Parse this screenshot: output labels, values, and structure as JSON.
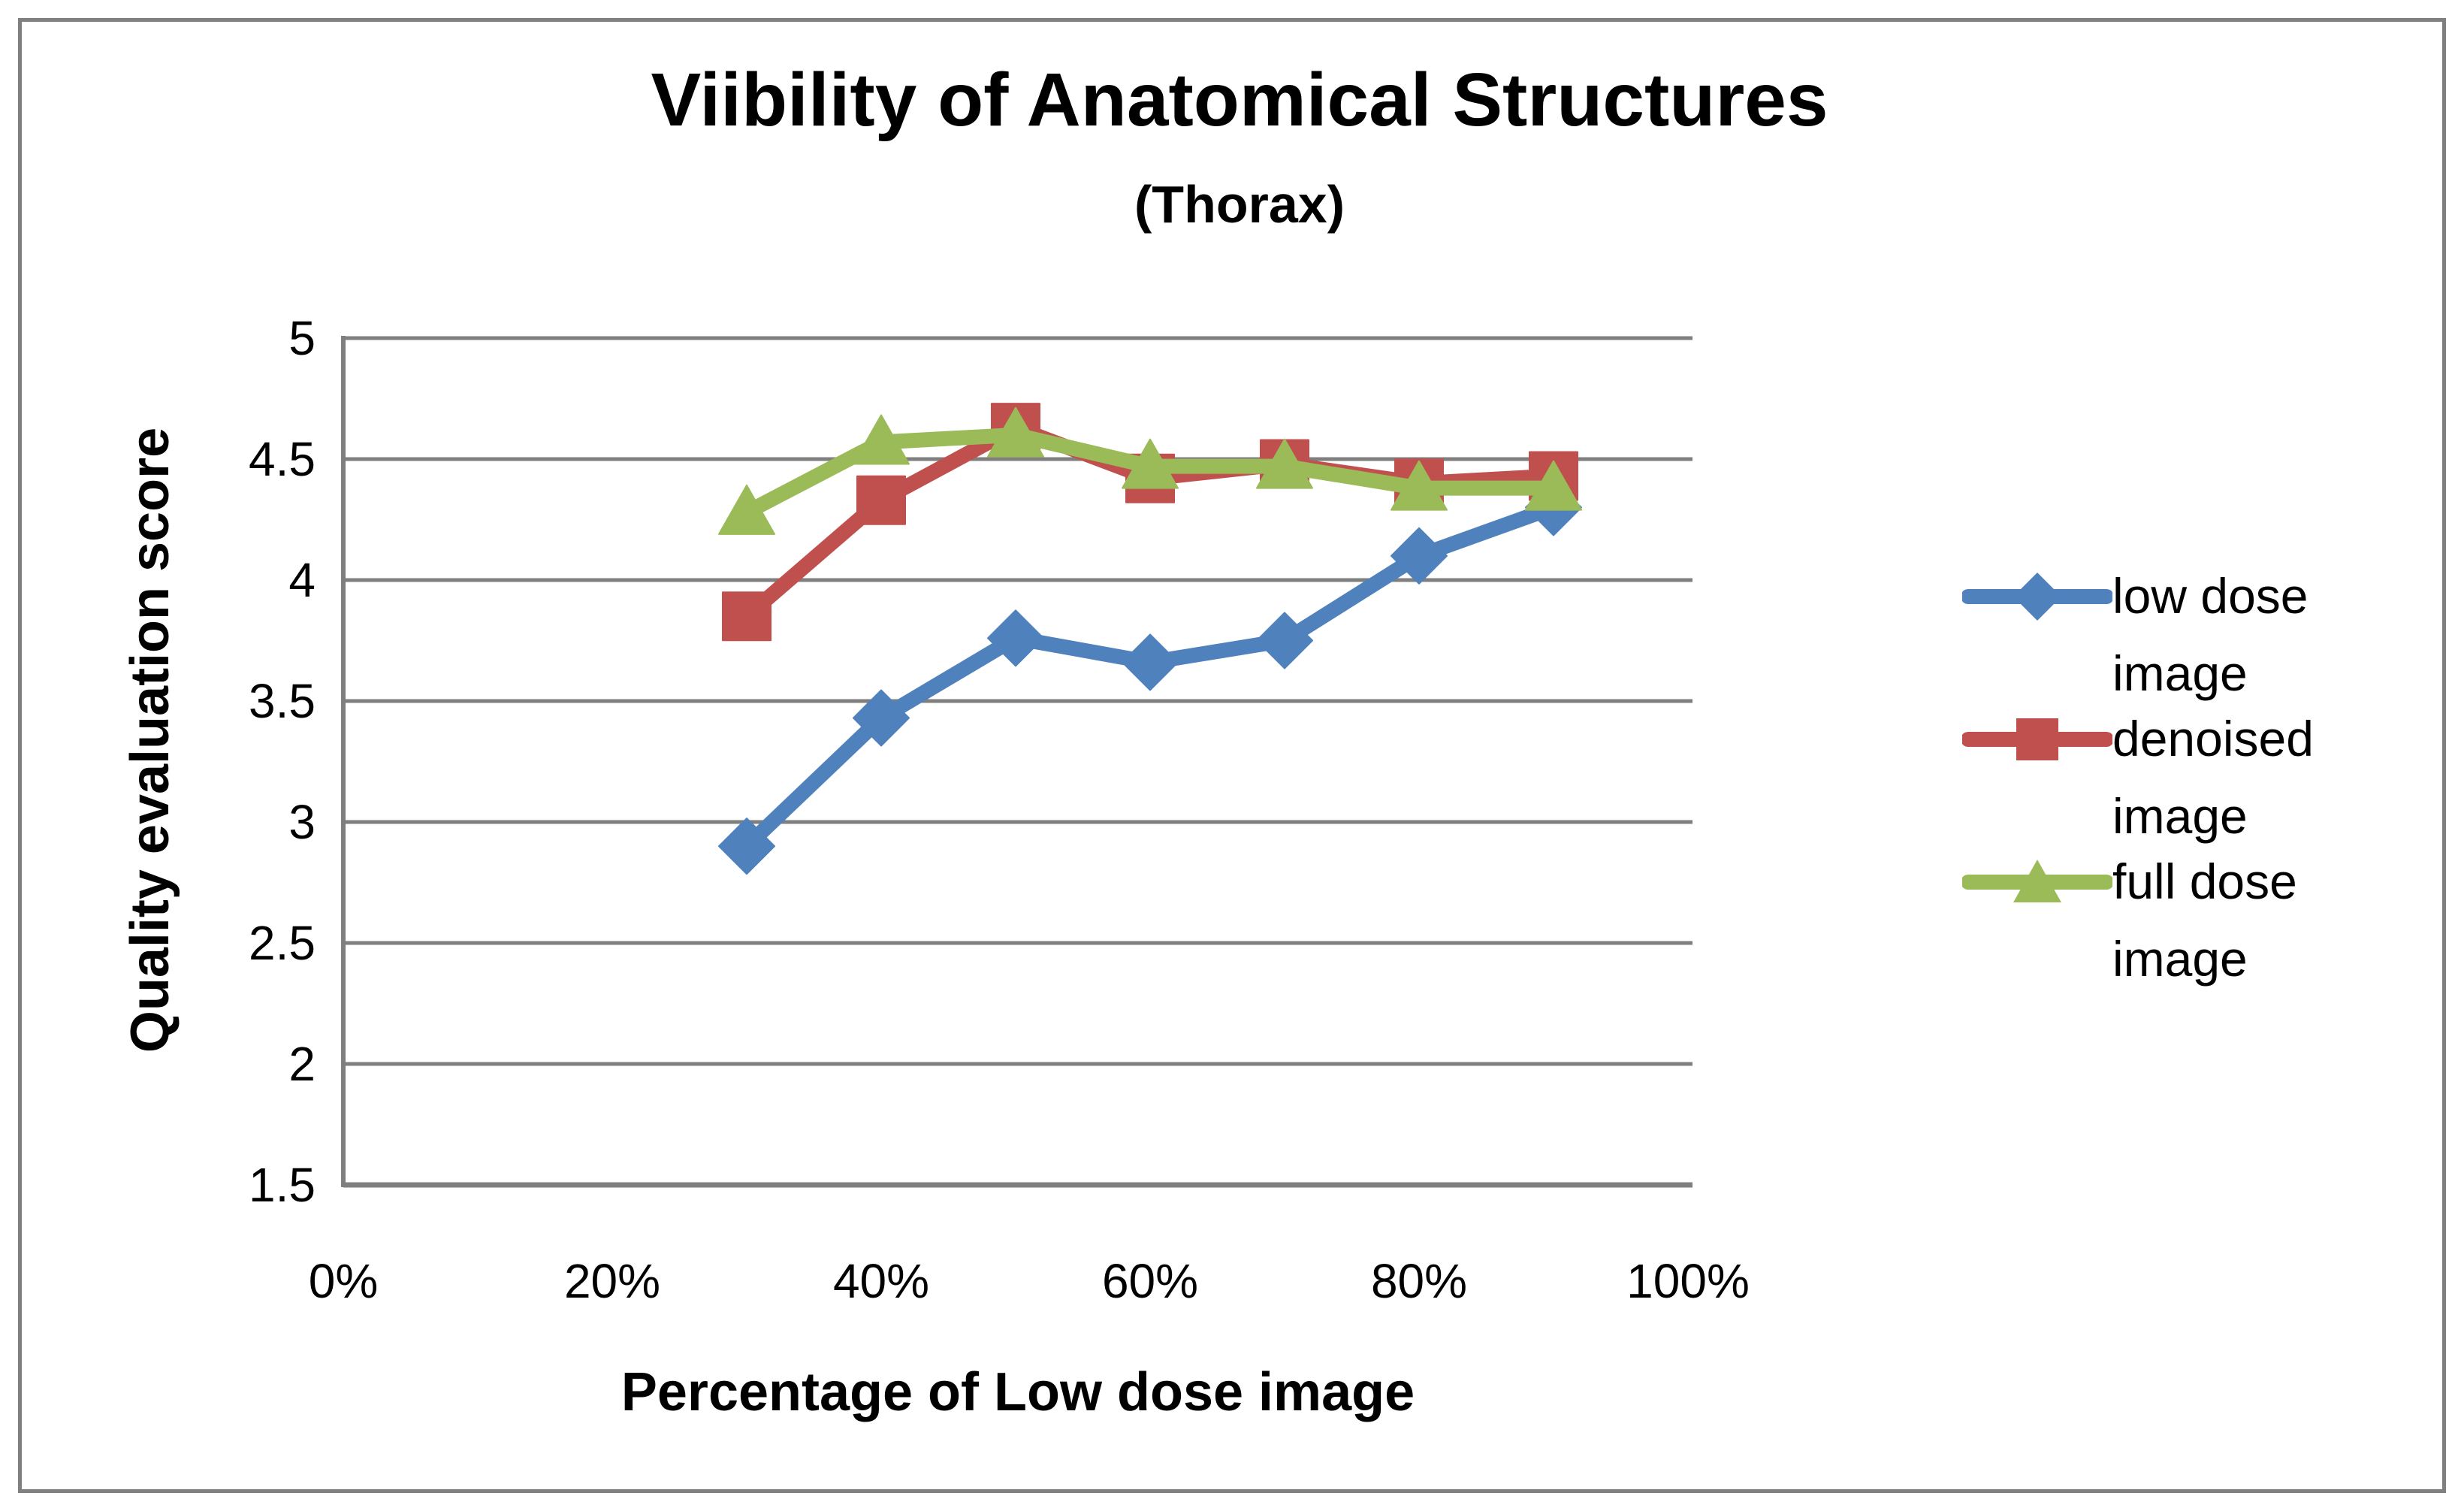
{
  "chart_data": {
    "type": "line",
    "title": "Viibility of Anatomical Structures",
    "subtitle": "(Thorax)",
    "xlabel": "Percentage of Low dose image",
    "ylabel": "Quality evaluation score",
    "x_tick_percent": [
      0,
      20,
      40,
      60,
      80,
      100
    ],
    "x_tick_labels": [
      "0%",
      "20%",
      "40%",
      "60%",
      "80%",
      "100%"
    ],
    "y_tick_values": [
      5,
      4.5,
      4,
      3.5,
      3,
      2.5,
      2,
      1.5
    ],
    "y_tick_labels": [
      "5",
      "4.5",
      "4",
      "3.5",
      "3",
      "2.5",
      "2",
      "1.5"
    ],
    "ylim": [
      1.5,
      5
    ],
    "xlim_percent": [
      0,
      100
    ],
    "grid": "horizontal",
    "legend_position": "right",
    "x_percent": [
      30,
      40,
      50,
      60,
      70,
      80,
      90
    ],
    "series": [
      {
        "name": "low dose image",
        "legend_lines": [
          "low dose",
          "image"
        ],
        "marker": "diamond",
        "color": "#4F81BD",
        "values": [
          2.9,
          3.43,
          3.76,
          3.66,
          3.75,
          4.1,
          4.3
        ]
      },
      {
        "name": "denoised image",
        "legend_lines": [
          "denoised",
          "image"
        ],
        "marker": "square",
        "color": "#C0504D",
        "values": [
          3.85,
          4.33,
          4.63,
          4.42,
          4.48,
          4.4,
          4.43
        ]
      },
      {
        "name": "full dose image",
        "legend_lines": [
          "full dose",
          "image"
        ],
        "marker": "triangle",
        "color": "#9BBB59",
        "values": [
          4.28,
          4.57,
          4.6,
          4.47,
          4.47,
          4.38,
          4.38
        ]
      }
    ]
  },
  "colors": {
    "gridline": "#7F7F7F",
    "axis": "#7F7F7F",
    "frame": "#808080",
    "background": "#FFFFFF",
    "text": "#000000"
  }
}
